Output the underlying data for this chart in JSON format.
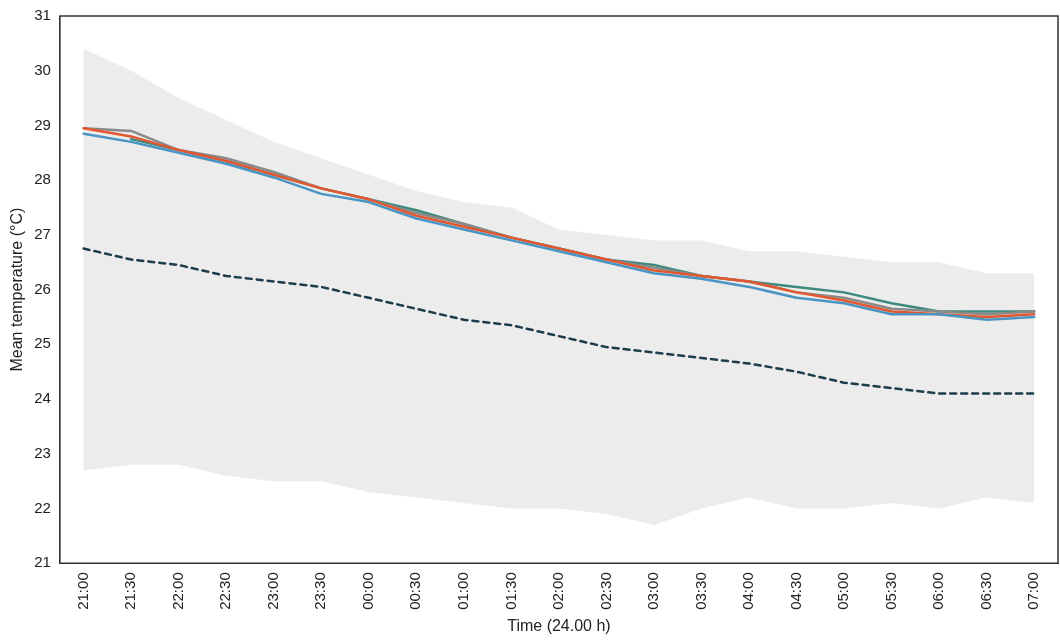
{
  "chart_data": {
    "type": "line",
    "xlabel": "Time (24.00 h)",
    "ylabel": "Mean temperature (°C)",
    "categories": [
      "21:00",
      "21:30",
      "22:00",
      "22:30",
      "23:00",
      "23:30",
      "00:00",
      "00:30",
      "01:00",
      "01:30",
      "02:00",
      "02:30",
      "03:00",
      "03:30",
      "04:00",
      "04:30",
      "05:00",
      "05:30",
      "06:00",
      "06:30",
      "07:00"
    ],
    "ylim": [
      21,
      31
    ],
    "yticks": [
      21,
      22,
      23,
      24,
      25,
      26,
      27,
      28,
      29,
      30,
      31
    ],
    "grid": false,
    "legend": false,
    "marker": "none",
    "line_style": "solid",
    "series": [
      {
        "color": "#1d3c4c",
        "line_style": "dashed",
        "values": [
          26.75,
          26.55,
          26.45,
          26.25,
          26.15,
          26.05,
          25.85,
          25.65,
          25.45,
          25.35,
          25.15,
          24.95,
          24.85,
          24.75,
          24.65,
          24.5,
          24.3,
          24.2,
          24.1,
          24.1,
          24.1
        ],
        "lower": [
          22.7,
          22.8,
          22.8,
          22.6,
          22.5,
          22.5,
          22.3,
          22.2,
          22.1,
          22.0,
          22.0,
          21.9,
          21.7,
          22.0,
          22.2,
          22.0,
          22.0,
          22.1,
          22.0,
          22.2,
          22.1
        ],
        "upper": [
          30.4,
          30.0,
          29.5,
          29.1,
          28.7,
          28.4,
          28.1,
          27.8,
          27.6,
          27.5,
          27.1,
          27.0,
          26.9,
          26.9,
          26.7,
          26.7,
          26.6,
          26.5,
          26.5,
          26.3,
          26.3
        ]
      },
      {
        "color": "#3d8a7e",
        "values": [
          null,
          28.75,
          28.55,
          28.35,
          28.1,
          27.85,
          27.65,
          27.45,
          27.2,
          26.95,
          26.75,
          26.55,
          26.45,
          26.25,
          26.15,
          26.05,
          25.95,
          25.75,
          25.6,
          25.6,
          25.6
        ]
      },
      {
        "color": "#8a8a8a",
        "values": [
          28.95,
          28.9,
          28.55,
          28.4,
          28.15,
          27.85,
          27.65,
          27.4,
          27.2,
          26.95,
          26.75,
          26.55,
          26.4,
          26.25,
          26.15,
          25.95,
          25.85,
          25.65,
          25.6,
          25.55,
          25.6
        ]
      },
      {
        "color": "#e4572e",
        "values": [
          28.95,
          28.8,
          28.55,
          28.35,
          28.1,
          27.85,
          27.65,
          27.35,
          27.15,
          26.95,
          26.75,
          26.55,
          26.35,
          26.25,
          26.15,
          25.95,
          25.8,
          25.6,
          25.55,
          25.5,
          25.55
        ]
      },
      {
        "color": "#4a94c4",
        "values": [
          28.85,
          28.7,
          28.5,
          28.3,
          28.05,
          27.75,
          27.6,
          27.3,
          27.1,
          26.9,
          26.7,
          26.5,
          26.3,
          26.2,
          26.05,
          25.85,
          25.75,
          25.55,
          25.55,
          25.45,
          25.5
        ]
      }
    ]
  }
}
